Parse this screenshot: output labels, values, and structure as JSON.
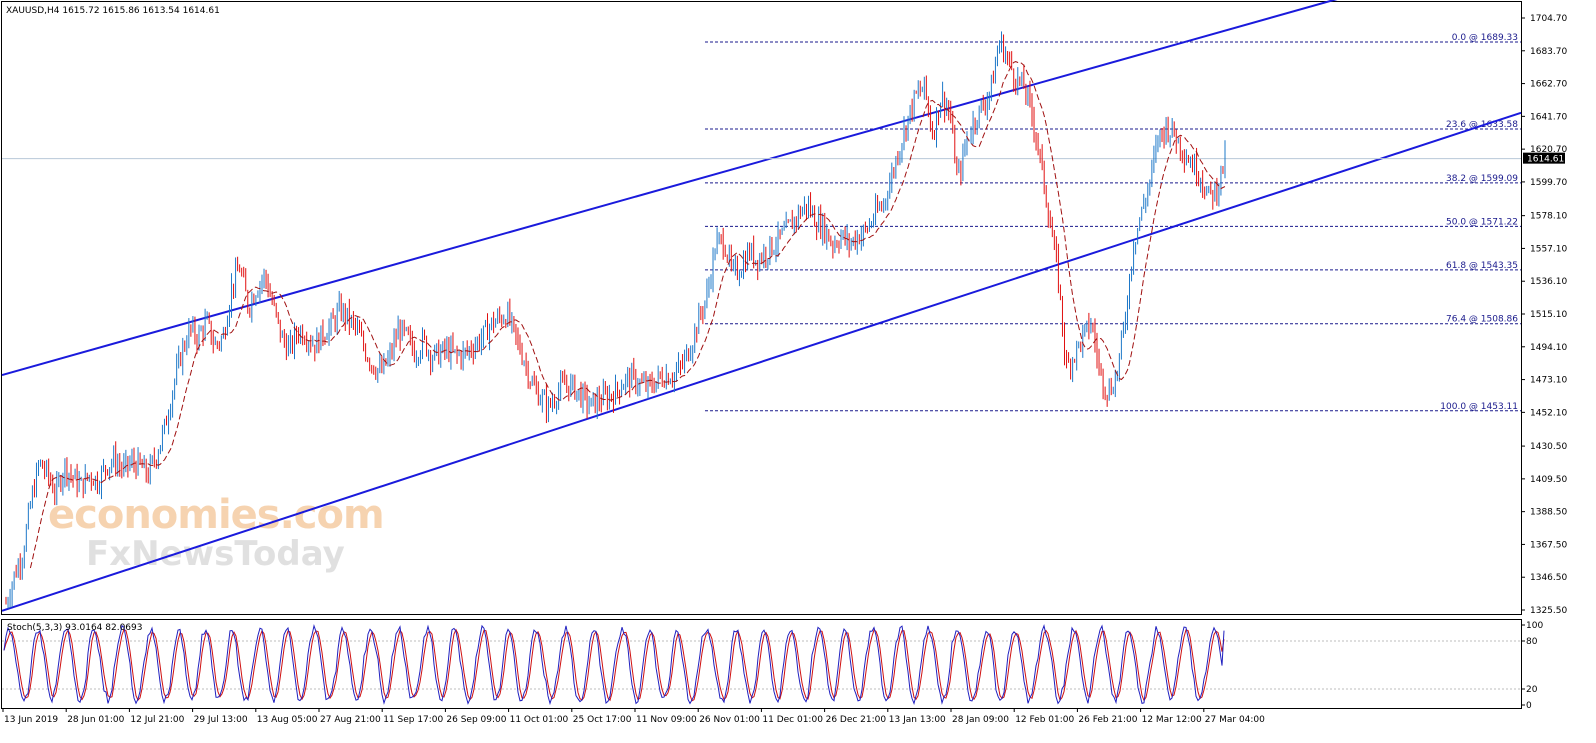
{
  "chart_data": [
    {
      "type": "candlestick",
      "title": "XAUUSD,H4  1615.72 1615.86 1613.54 1614.61",
      "symbol": "XAUUSD",
      "timeframe": "H4",
      "ohlc_last": {
        "open": 1615.72,
        "high": 1615.86,
        "low": 1613.54,
        "close": 1614.61
      },
      "current_price_label": "1614.61",
      "ylim": [
        1325.5,
        1704.7
      ],
      "y_ticks": [
        "1704.70",
        "1683.70",
        "1662.70",
        "1641.70",
        "1620.70",
        "1599.70",
        "1578.10",
        "1557.10",
        "1536.10",
        "1515.10",
        "1494.10",
        "1473.10",
        "1452.10",
        "1430.50",
        "1409.50",
        "1388.50",
        "1367.50",
        "1346.50",
        "1325.50"
      ],
      "x_ticks": [
        "13 Jun 2019",
        "28 Jun 01:00",
        "12 Jul 21:00",
        "29 Jul 13:00",
        "13 Aug 05:00",
        "27 Aug 21:00",
        "11 Sep 17:00",
        "26 Sep 09:00",
        "11 Oct 01:00",
        "25 Oct 17:00",
        "11 Nov 09:00",
        "26 Nov 01:00",
        "11 Dec 01:00",
        "26 Dec 21:00",
        "13 Jan 13:00",
        "28 Jan 09:00",
        "12 Feb 01:00",
        "26 Feb 21:00",
        "12 Mar 12:00",
        "27 Mar 04:00"
      ],
      "price_path": [
        [
          0,
          1330
        ],
        [
          0.4,
          1348
        ],
        [
          0.8,
          1362
        ],
        [
          1.2,
          1395
        ],
        [
          1.6,
          1420
        ],
        [
          2,
          1412
        ],
        [
          2.4,
          1400
        ],
        [
          2.8,
          1418
        ],
        [
          3.2,
          1410
        ],
        [
          3.6,
          1405
        ],
        [
          4,
          1412
        ],
        [
          4.4,
          1408
        ],
        [
          4.8,
          1418
        ],
        [
          5.2,
          1422
        ],
        [
          5.6,
          1415
        ],
        [
          6,
          1420
        ],
        [
          6.4,
          1418
        ],
        [
          6.8,
          1412
        ],
        [
          7.2,
          1425
        ],
        [
          7.6,
          1442
        ],
        [
          8,
          1468
        ],
        [
          8.4,
          1490
        ],
        [
          8.8,
          1505
        ],
        [
          9.2,
          1500
        ],
        [
          9.6,
          1510
        ],
        [
          10,
          1495
        ],
        [
          10.4,
          1500
        ],
        [
          10.8,
          1532
        ],
        [
          11.2,
          1545
        ],
        [
          11.6,
          1520
        ],
        [
          12,
          1532
        ],
        [
          12.4,
          1540
        ],
        [
          12.8,
          1520
        ],
        [
          13.2,
          1500
        ],
        [
          13.6,
          1492
        ],
        [
          14,
          1505
        ],
        [
          14.4,
          1502
        ],
        [
          14.8,
          1495
        ],
        [
          15.2,
          1503
        ],
        [
          15.6,
          1508
        ],
        [
          16,
          1518
        ],
        [
          16.4,
          1512
        ],
        [
          16.8,
          1505
        ],
        [
          17.2,
          1492
        ],
        [
          17.6,
          1482
        ],
        [
          18,
          1478
        ],
        [
          18.4,
          1488
        ],
        [
          18.8,
          1505
        ],
        [
          19.2,
          1500
        ],
        [
          19.6,
          1490
        ],
        [
          20,
          1498
        ],
        [
          20.4,
          1488
        ],
        [
          20.8,
          1490
        ],
        [
          21.2,
          1492
        ],
        [
          21.6,
          1488
        ],
        [
          22,
          1490
        ],
        [
          22.4,
          1495
        ],
        [
          22.8,
          1500
        ],
        [
          23.2,
          1508
        ],
        [
          23.6,
          1512
        ],
        [
          24,
          1515
        ],
        [
          24.4,
          1500
        ],
        [
          24.8,
          1487
        ],
        [
          25.2,
          1470
        ],
        [
          25.6,
          1462
        ],
        [
          26,
          1455
        ],
        [
          26.4,
          1465
        ],
        [
          26.8,
          1470
        ],
        [
          27.2,
          1468
        ],
        [
          27.6,
          1462
        ],
        [
          28,
          1456
        ],
        [
          28.4,
          1460
        ],
        [
          28.8,
          1462
        ],
        [
          29.2,
          1465
        ],
        [
          29.6,
          1472
        ],
        [
          30,
          1474
        ],
        [
          30.4,
          1470
        ],
        [
          30.8,
          1468
        ],
        [
          31.2,
          1473
        ],
        [
          31.6,
          1476
        ],
        [
          32,
          1476
        ],
        [
          32.4,
          1482
        ],
        [
          32.8,
          1495
        ],
        [
          33.2,
          1512
        ],
        [
          33.6,
          1528
        ],
        [
          34,
          1560
        ],
        [
          34.4,
          1562
        ],
        [
          34.8,
          1540
        ],
        [
          35.2,
          1545
        ],
        [
          35.6,
          1555
        ],
        [
          36,
          1550
        ],
        [
          36.4,
          1555
        ],
        [
          36.8,
          1560
        ],
        [
          37.2,
          1565
        ],
        [
          37.6,
          1572
        ],
        [
          38,
          1580
        ],
        [
          38.4,
          1585
        ],
        [
          38.8,
          1575
        ],
        [
          39.2,
          1570
        ],
        [
          39.6,
          1560
        ],
        [
          40,
          1565
        ],
        [
          40.4,
          1560
        ],
        [
          40.8,
          1565
        ],
        [
          41.2,
          1568
        ],
        [
          41.6,
          1578
        ],
        [
          42,
          1585
        ],
        [
          42.4,
          1602
        ],
        [
          42.8,
          1622
        ],
        [
          43.2,
          1640
        ],
        [
          43.6,
          1655
        ],
        [
          44,
          1660
        ],
        [
          44.4,
          1630
        ],
        [
          44.8,
          1655
        ],
        [
          45.2,
          1645
        ],
        [
          45.6,
          1600
        ],
        [
          46,
          1625
        ],
        [
          46.4,
          1640
        ],
        [
          46.8,
          1648
        ],
        [
          47.2,
          1660
        ],
        [
          47.6,
          1690
        ],
        [
          48,
          1678
        ],
        [
          48.4,
          1665
        ],
        [
          48.8,
          1660
        ],
        [
          49.2,
          1640
        ],
        [
          49.6,
          1610
        ],
        [
          50,
          1575
        ],
        [
          50.4,
          1540
        ],
        [
          50.8,
          1480
        ],
        [
          51.2,
          1490
        ],
        [
          51.6,
          1500
        ],
        [
          52,
          1510
        ],
        [
          52.4,
          1478
        ],
        [
          52.8,
          1465
        ],
        [
          53.2,
          1475
        ],
        [
          53.6,
          1510
        ],
        [
          54,
          1560
        ],
        [
          54.4,
          1580
        ],
        [
          54.8,
          1600
        ],
        [
          55.2,
          1628
        ],
        [
          55.6,
          1635
        ],
        [
          56,
          1630
        ],
        [
          56.4,
          1620
        ],
        [
          56.8,
          1612
        ],
        [
          57.2,
          1605
        ],
        [
          57.6,
          1590
        ],
        [
          58,
          1595
        ],
        [
          58.4,
          1614.61
        ]
      ]
    },
    {
      "type": "line",
      "title": "Stoch(5,3,3) 93.0164 82.0693",
      "y_ticks": [
        "100",
        "80",
        "20",
        "0"
      ],
      "ylim": [
        0,
        100
      ],
      "levels": [
        80,
        20
      ],
      "series": [
        {
          "name": "%K",
          "color": "#2020c0",
          "last": 93.0164
        },
        {
          "name": "%D",
          "color": "#d01010",
          "last": 82.0693
        }
      ]
    }
  ],
  "fibonacci": [
    {
      "label": "0.0 @ 1689.33",
      "price": 1689.33
    },
    {
      "label": "23.6 @ 1633.58",
      "price": 1633.58
    },
    {
      "label": "38.2 @ 1599.09",
      "price": 1599.09
    },
    {
      "label": "50.0 @ 1571.22",
      "price": 1571.22
    },
    {
      "label": "61.8 @ 1543.35",
      "price": 1543.35
    },
    {
      "label": "76.4 @ 1508.86",
      "price": 1508.86
    },
    {
      "label": "100.0 @ 1453.11",
      "price": 1453.11
    }
  ],
  "channel_lines": [
    {
      "name": "upper-channel",
      "from_price": 1476,
      "to_price": 1750
    },
    {
      "name": "lower-channel",
      "from_price": 1325,
      "to_price": 1644
    }
  ],
  "watermark": {
    "line1": "economies.com",
    "line2": "FxNewsToday"
  },
  "colors": {
    "up": "#1e78c8",
    "down": "#e01010",
    "ma": "#a01010",
    "channel": "#1a1adc",
    "fib": "#1a1a8c",
    "k": "#2020c0",
    "d": "#d01010"
  }
}
